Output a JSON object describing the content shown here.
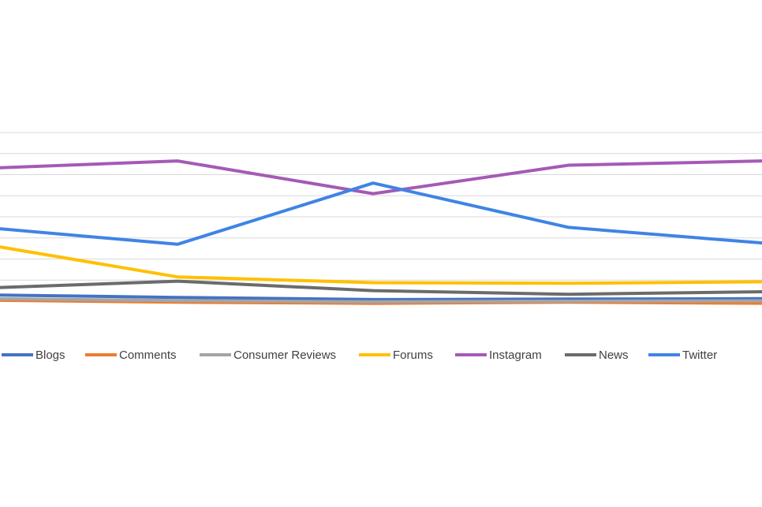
{
  "chart_data": {
    "type": "line",
    "categories": [
      "",
      "",
      "",
      "",
      ""
    ],
    "ylim": [
      0,
      8
    ],
    "grid": true,
    "legend_position": "bottom",
    "series": [
      {
        "name": "Blogs",
        "color": "#4472C4",
        "values": [
          0.3,
          0.18,
          0.08,
          0.1,
          0.12
        ]
      },
      {
        "name": "Comments",
        "color": "#ED7D31",
        "values": [
          0.05,
          -0.05,
          -0.1,
          -0.05,
          -0.1
        ]
      },
      {
        "name": "Consumer Reviews",
        "color": "#A5A5A5",
        "values": [
          0.12,
          0.03,
          -0.03,
          0.0,
          0.02
        ]
      },
      {
        "name": "Forums",
        "color": "#FFC000",
        "values": [
          2.7,
          1.15,
          0.88,
          0.85,
          0.92
        ]
      },
      {
        "name": "Instagram",
        "color": "#A55AB5",
        "values": [
          6.3,
          6.65,
          5.1,
          6.45,
          6.65
        ]
      },
      {
        "name": "News",
        "color": "#6B6B6B",
        "values": [
          0.62,
          0.95,
          0.5,
          0.33,
          0.45
        ]
      },
      {
        "name": "Twitter",
        "color": "#3F84E5",
        "values": [
          3.5,
          2.7,
          5.6,
          3.5,
          2.75
        ]
      }
    ]
  }
}
